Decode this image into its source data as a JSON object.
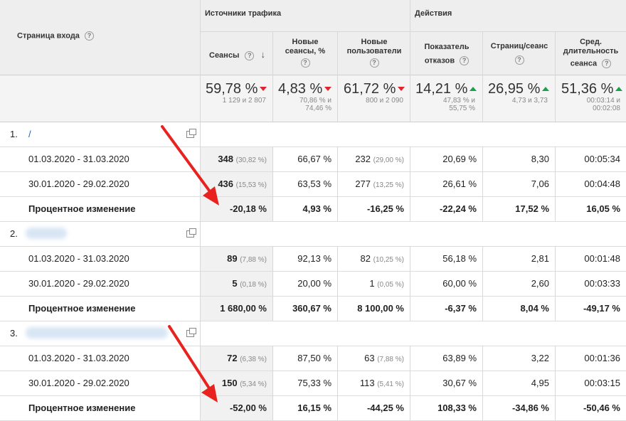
{
  "header": {
    "landing_page": "Страница входа",
    "group_traffic": "Источники трафика",
    "group_actions": "Действия",
    "columns": {
      "sessions": "Сеансы",
      "new_sessions": [
        "Новые",
        "сеансы, %"
      ],
      "new_users": [
        "Новые",
        "пользователи"
      ],
      "bounce": [
        "Показатель",
        "отказов"
      ],
      "pages": "Страниц/сеанс",
      "duration": [
        "Сред.",
        "длительность",
        "сеанса"
      ]
    },
    "help_glyph": "?"
  },
  "totals": {
    "sessions": {
      "value": "59,78 %",
      "sub": "1 129 и 2 807",
      "trend": "down"
    },
    "new_sessions": {
      "value": "4,83 %",
      "sub": [
        "70,86 % и",
        "74,46 %"
      ],
      "trend": "down"
    },
    "new_users": {
      "value": "61,72 %",
      "sub": "800 и 2 090",
      "trend": "down"
    },
    "bounce": {
      "value": "14,21 %",
      "sub": [
        "47,83 % и",
        "55,75 %"
      ],
      "trend": "up"
    },
    "pages": {
      "value": "26,95 %",
      "sub": "4,73 и 3,73",
      "trend": "up"
    },
    "duration": {
      "value": "51,36 %",
      "sub": [
        "00:03:14 и",
        "00:02:08"
      ],
      "trend": "up"
    }
  },
  "groups": [
    {
      "index": "1.",
      "page": "/",
      "rows": [
        {
          "label": "01.03.2020 - 31.03.2020",
          "sessions": "348",
          "sessions_pct": "(30,82 %)",
          "new_sessions": "66,67 %",
          "new_users": "232",
          "new_users_pct": "(29,00 %)",
          "bounce": "20,69 %",
          "pages": "8,30",
          "duration": "00:05:34"
        },
        {
          "label": "30.01.2020 - 29.02.2020",
          "sessions": "436",
          "sessions_pct": "(15,53 %)",
          "new_sessions": "63,53 %",
          "new_users": "277",
          "new_users_pct": "(13,25 %)",
          "bounce": "26,61 %",
          "pages": "7,06",
          "duration": "00:04:48"
        }
      ],
      "change": {
        "label": "Процентное изменение",
        "sessions": "-20,18 %",
        "new_sessions": "4,93 %",
        "new_users": "-16,25 %",
        "bounce": "-22,24 %",
        "pages": "17,52 %",
        "duration": "16,05 %"
      }
    },
    {
      "index": "2.",
      "page": "",
      "rows": [
        {
          "label": "01.03.2020 - 31.03.2020",
          "sessions": "89",
          "sessions_pct": "(7,88 %)",
          "new_sessions": "92,13 %",
          "new_users": "82",
          "new_users_pct": "(10,25 %)",
          "bounce": "56,18 %",
          "pages": "2,81",
          "duration": "00:01:48"
        },
        {
          "label": "30.01.2020 - 29.02.2020",
          "sessions": "5",
          "sessions_pct": "(0,18 %)",
          "new_sessions": "20,00 %",
          "new_users": "1",
          "new_users_pct": "(0,05 %)",
          "bounce": "60,00 %",
          "pages": "2,60",
          "duration": "00:03:33"
        }
      ],
      "change": {
        "label": "Процентное изменение",
        "sessions": "1 680,00 %",
        "new_sessions": "360,67 %",
        "new_users": "8 100,00 %",
        "bounce": "-6,37 %",
        "pages": "8,04 %",
        "duration": "-49,17 %"
      }
    },
    {
      "index": "3.",
      "page": "",
      "rows": [
        {
          "label": "01.03.2020 - 31.03.2020",
          "sessions": "72",
          "sessions_pct": "(6,38 %)",
          "new_sessions": "87,50 %",
          "new_users": "63",
          "new_users_pct": "(7,88 %)",
          "bounce": "63,89 %",
          "pages": "3,22",
          "duration": "00:01:36"
        },
        {
          "label": "30.01.2020 - 29.02.2020",
          "sessions": "150",
          "sessions_pct": "(5,34 %)",
          "new_sessions": "75,33 %",
          "new_users": "113",
          "new_users_pct": "(5,41 %)",
          "bounce": "30,67 %",
          "pages": "4,95",
          "duration": "00:03:15"
        }
      ],
      "change": {
        "label": "Процентное изменение",
        "sessions": "-52,00 %",
        "new_sessions": "16,15 %",
        "new_users": "-44,25 %",
        "bounce": "108,33 %",
        "pages": "-34,86 %",
        "duration": "-50,46 %"
      }
    }
  ],
  "colors": {
    "down": "#e0242f",
    "up": "#1aa14d",
    "annotation_arrow": "#e8231f"
  },
  "icons": {
    "sort": "sort-desc-arrow-icon",
    "external": "external-link-icon",
    "help": "help-circle-icon"
  }
}
